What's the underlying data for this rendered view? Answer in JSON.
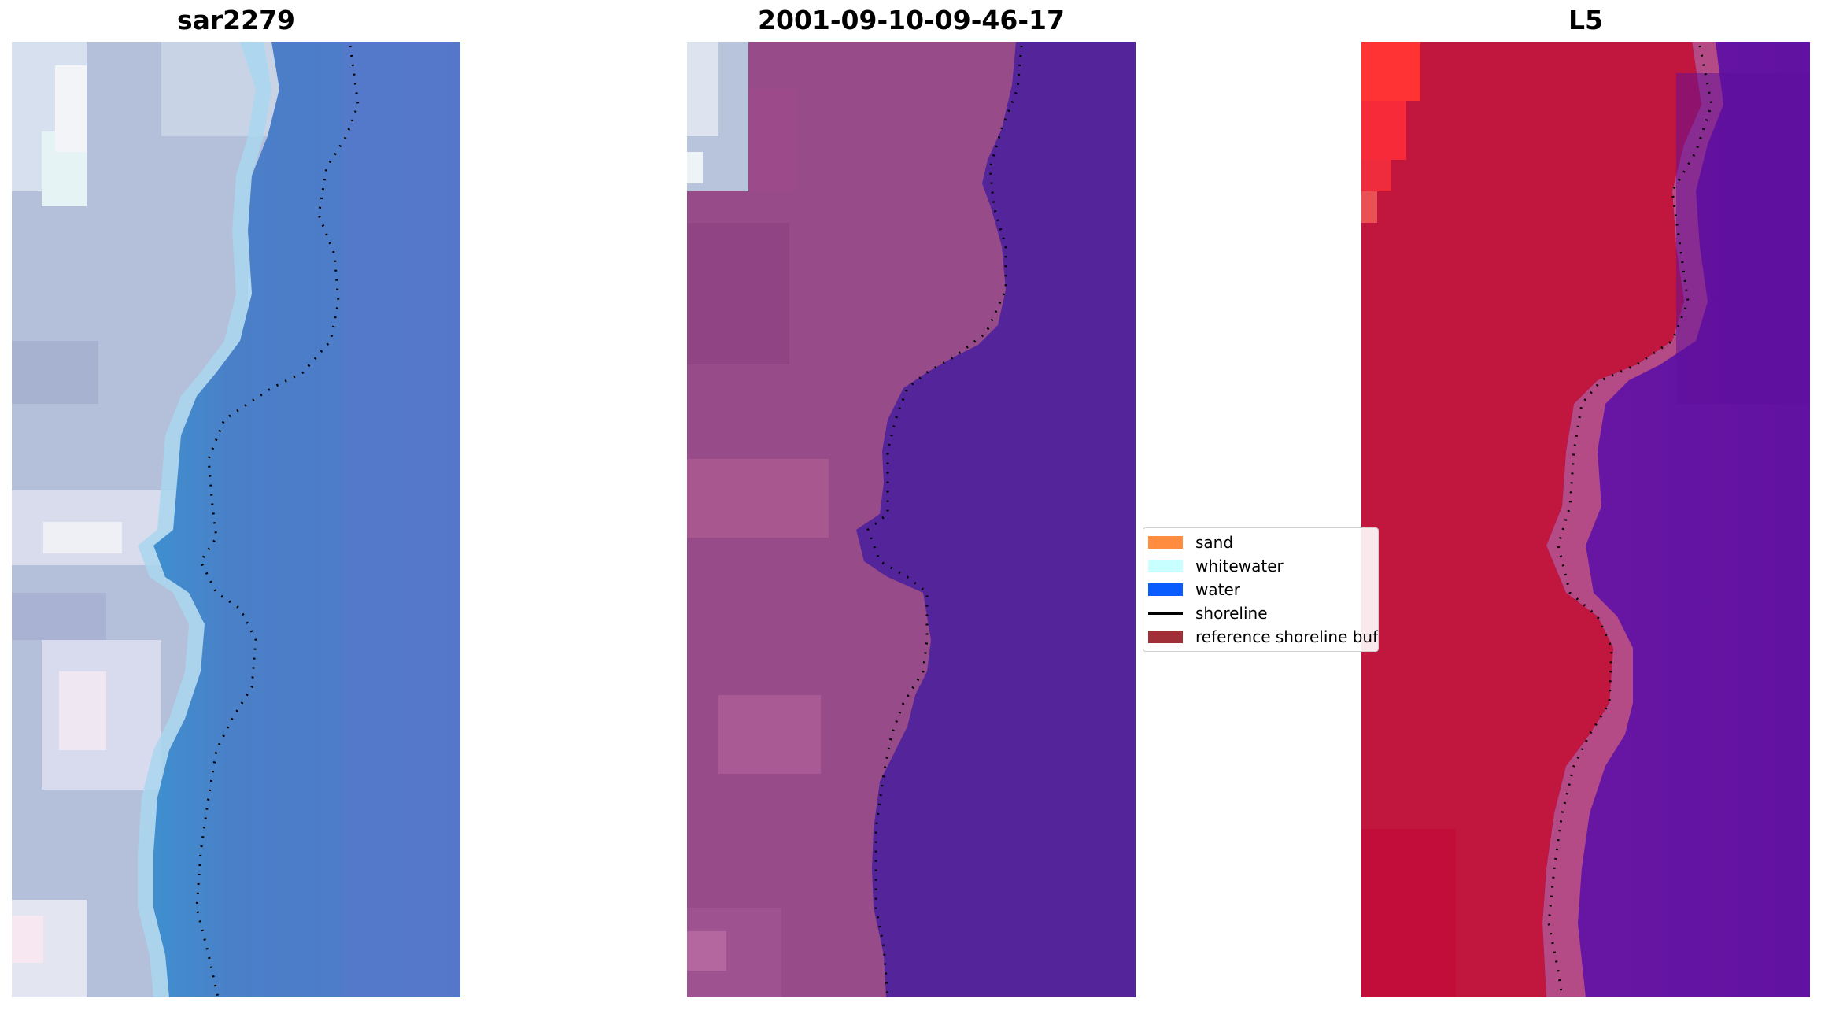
{
  "panels": [
    {
      "title": "sar2279",
      "type": "rgb-image"
    },
    {
      "title": "2001-09-10-09-46-17",
      "type": "classification"
    },
    {
      "title": "L5",
      "type": "mndwi"
    }
  ],
  "legend": {
    "items": [
      {
        "label": "sand",
        "color": "#ff8c3f",
        "kind": "patch"
      },
      {
        "label": "whitewater",
        "color": "#c8ffff",
        "kind": "patch"
      },
      {
        "label": "water",
        "color": "#0a5cff",
        "kind": "patch"
      },
      {
        "label": "shoreline",
        "color": "#000000",
        "kind": "line"
      },
      {
        "label": "reference shoreline buffer",
        "color": "#a12f38",
        "kind": "patch"
      }
    ]
  },
  "colors": {
    "land_rgb": "#b4bfd9",
    "water_rgb": "#4d7ec6",
    "land_class": "#9a4a88",
    "water_class": "#54249b",
    "land_index": "#c1163e",
    "water_index": "#6512a0",
    "shoreline_points": "#000000"
  }
}
